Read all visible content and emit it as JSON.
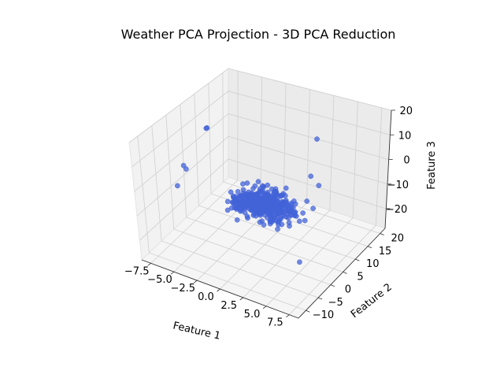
{
  "chart_data": {
    "type": "scatter",
    "title": "Weather PCA Projection - 3D PCA Reduction",
    "xlabel": "Feature 1",
    "ylabel": "Feature 2",
    "zlabel": "Feature 3",
    "xticks": [
      "−7.5",
      "−5.0",
      "−2.5",
      "0.0",
      "2.5",
      "5.0",
      "7.5"
    ],
    "yticks": [
      "−10",
      "−5",
      "0",
      "5",
      "10",
      "15",
      "20"
    ],
    "zticks": [
      "−20",
      "−10",
      "0",
      "10",
      "20"
    ],
    "xlim": [
      -8.5,
      8.5
    ],
    "ylim": [
      -13,
      22
    ],
    "zlim": [
      -28,
      20
    ],
    "projection": "3d",
    "grid": true,
    "marker_color": "#4363d8",
    "background_panes": "#f2f2f2",
    "outliers": [
      {
        "x": -7.6,
        "y": 2.0,
        "z": -2.0
      },
      {
        "x": -7.2,
        "y": 1.5,
        "z": -2.5
      },
      {
        "x": -7.4,
        "y": 10.0,
        "z": 6.5
      },
      {
        "x": -7.3,
        "y": 10.0,
        "z": 6.8
      },
      {
        "x": -6.0,
        "y": -6.0,
        "z": -1.0
      },
      {
        "x": 2.5,
        "y": 16.0,
        "z": 7.5
      },
      {
        "x": 7.5,
        "y": -5.0,
        "z": 17.0
      },
      {
        "x": 7.8,
        "y": -3.0,
        "z": 12.0
      },
      {
        "x": 7.0,
        "y": -2.0,
        "z": 1.5
      },
      {
        "x": 7.5,
        "y": -9.0,
        "z": -12.0
      }
    ]
  }
}
